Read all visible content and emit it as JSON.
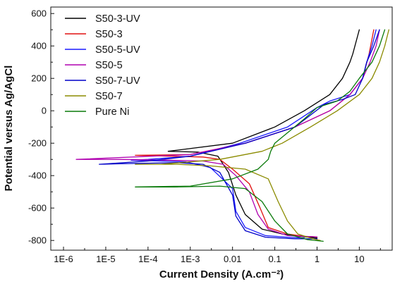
{
  "chart_data": {
    "type": "line",
    "xlabel": "Current Density (A.cm⁻²)",
    "ylabel": "Potential versus Ag/AgCl",
    "x_scale": "log",
    "xlim": [
      5e-07,
      60
    ],
    "ylim": [
      -860,
      640
    ],
    "x_tick_values": [
      1e-06,
      1e-05,
      0.0001,
      0.001,
      0.01,
      0.1,
      1,
      10
    ],
    "x_tick_labels": [
      "1E-6",
      "1E-5",
      "1E-4",
      "1E-3",
      "0.01",
      "0.1",
      "1",
      "10"
    ],
    "y_tick_values": [
      -800,
      -600,
      -400,
      -200,
      0,
      200,
      400,
      600
    ],
    "y_tick_labels": [
      "-800",
      "-600",
      "-400",
      "-200",
      "0",
      "200",
      "400",
      "600"
    ],
    "grid": false,
    "legend_position": "top-left",
    "series": [
      {
        "name": "S50-3-UV",
        "color": "#000000",
        "points": [
          [
            10,
            500
          ],
          [
            7,
            350
          ],
          [
            6,
            300
          ],
          [
            4,
            200
          ],
          [
            2,
            100
          ],
          [
            0.5,
            0
          ],
          [
            0.1,
            -100
          ],
          [
            0.01,
            -200
          ],
          [
            0.0003,
            -250
          ],
          [
            0.0015,
            -255
          ],
          [
            0.0045,
            -280
          ],
          [
            0.008,
            -380
          ],
          [
            0.012,
            -520
          ],
          [
            0.02,
            -640
          ],
          [
            0.05,
            -730
          ],
          [
            0.15,
            -760
          ],
          [
            0.4,
            -775
          ],
          [
            1,
            -785
          ]
        ]
      },
      {
        "name": "S50-3",
        "color": "#e01010",
        "points": [
          [
            22,
            500
          ],
          [
            17,
            350
          ],
          [
            12,
            200
          ],
          [
            6,
            100
          ],
          [
            2,
            0
          ],
          [
            0.3,
            -100
          ],
          [
            0.02,
            -200
          ],
          [
            0.001,
            -270
          ],
          [
            5e-05,
            -275
          ],
          [
            0.0003,
            -280
          ],
          [
            0.002,
            -285
          ],
          [
            0.005,
            -300
          ],
          [
            0.01,
            -360
          ],
          [
            0.025,
            -450
          ],
          [
            0.045,
            -600
          ],
          [
            0.07,
            -720
          ],
          [
            0.2,
            -760
          ],
          [
            0.5,
            -775
          ],
          [
            1,
            -778
          ]
        ]
      },
      {
        "name": "S50-5-UV",
        "color": "#1a1aff",
        "points": [
          [
            25,
            500
          ],
          [
            20,
            400
          ],
          [
            15,
            300
          ],
          [
            12,
            200
          ],
          [
            6,
            100
          ],
          [
            2,
            60
          ],
          [
            1,
            20
          ],
          [
            0.2,
            -100
          ],
          [
            0.015,
            -200
          ],
          [
            0.001,
            -280
          ],
          [
            0.0001,
            -300
          ],
          [
            4e-05,
            -305
          ],
          [
            0.0002,
            -310
          ],
          [
            0.0008,
            -315
          ],
          [
            0.003,
            -350
          ],
          [
            0.01,
            -480
          ],
          [
            0.012,
            -620
          ],
          [
            0.02,
            -720
          ],
          [
            0.06,
            -770
          ],
          [
            0.2,
            -780
          ],
          [
            0.5,
            -785
          ]
        ]
      },
      {
        "name": "S50-5",
        "color": "#b000b0",
        "points": [
          [
            30,
            500
          ],
          [
            25,
            400
          ],
          [
            18,
            300
          ],
          [
            12,
            200
          ],
          [
            6,
            100
          ],
          [
            2,
            0
          ],
          [
            0.3,
            -100
          ],
          [
            0.02,
            -200
          ],
          [
            0.001,
            -270
          ],
          [
            2e-06,
            -300
          ],
          [
            2e-05,
            -300
          ],
          [
            0.0003,
            -305
          ],
          [
            0.002,
            -310
          ],
          [
            0.006,
            -330
          ],
          [
            0.012,
            -400
          ],
          [
            0.025,
            -500
          ],
          [
            0.04,
            -640
          ],
          [
            0.07,
            -730
          ],
          [
            0.2,
            -770
          ],
          [
            0.5,
            -775
          ],
          [
            1,
            -778
          ]
        ]
      },
      {
        "name": "S50-7-UV",
        "color": "#0000c8",
        "points": [
          [
            30,
            500
          ],
          [
            22,
            400
          ],
          [
            15,
            300
          ],
          [
            12,
            200
          ],
          [
            8,
            100
          ],
          [
            4,
            70
          ],
          [
            1.5,
            40
          ],
          [
            0.3,
            -100
          ],
          [
            0.02,
            -200
          ],
          [
            0.001,
            -280
          ],
          [
            0.0001,
            -310
          ],
          [
            7e-06,
            -330
          ],
          [
            5e-05,
            -325
          ],
          [
            0.0005,
            -320
          ],
          [
            0.002,
            -330
          ],
          [
            0.005,
            -380
          ],
          [
            0.01,
            -520
          ],
          [
            0.012,
            -650
          ],
          [
            0.02,
            -740
          ],
          [
            0.06,
            -780
          ],
          [
            0.3,
            -790
          ],
          [
            1,
            -790
          ]
        ]
      },
      {
        "name": "S50-7",
        "color": "#8b8b00",
        "points": [
          [
            50,
            500
          ],
          [
            40,
            400
          ],
          [
            30,
            300
          ],
          [
            20,
            200
          ],
          [
            10,
            100
          ],
          [
            3,
            0
          ],
          [
            0.7,
            -100
          ],
          [
            0.15,
            -200
          ],
          [
            0.05,
            -250
          ],
          [
            0.005,
            -300
          ],
          [
            0.0002,
            -330
          ],
          [
            5e-05,
            -330
          ],
          [
            0.0005,
            -330
          ],
          [
            0.003,
            -340
          ],
          [
            0.02,
            -360
          ],
          [
            0.07,
            -420
          ],
          [
            0.12,
            -560
          ],
          [
            0.2,
            -680
          ],
          [
            0.35,
            -760
          ],
          [
            0.8,
            -790
          ],
          [
            1.2,
            -800
          ]
        ]
      },
      {
        "name": "Pure Ni",
        "color": "#0a7a0a",
        "points": [
          [
            40,
            500
          ],
          [
            30,
            400
          ],
          [
            20,
            300
          ],
          [
            10,
            200
          ],
          [
            6,
            120
          ],
          [
            3,
            60
          ],
          [
            1,
            20
          ],
          [
            0.5,
            -50
          ],
          [
            0.1,
            -200
          ],
          [
            0.08,
            -250
          ],
          [
            0.07,
            -300
          ],
          [
            0.04,
            -360
          ],
          [
            0.01,
            -420
          ],
          [
            0.001,
            -465
          ],
          [
            5e-05,
            -470
          ],
          [
            0.0005,
            -470
          ],
          [
            0.005,
            -465
          ],
          [
            0.02,
            -480
          ],
          [
            0.05,
            -560
          ],
          [
            0.1,
            -680
          ],
          [
            0.2,
            -760
          ],
          [
            0.6,
            -795
          ],
          [
            1.4,
            -805
          ]
        ]
      }
    ]
  }
}
